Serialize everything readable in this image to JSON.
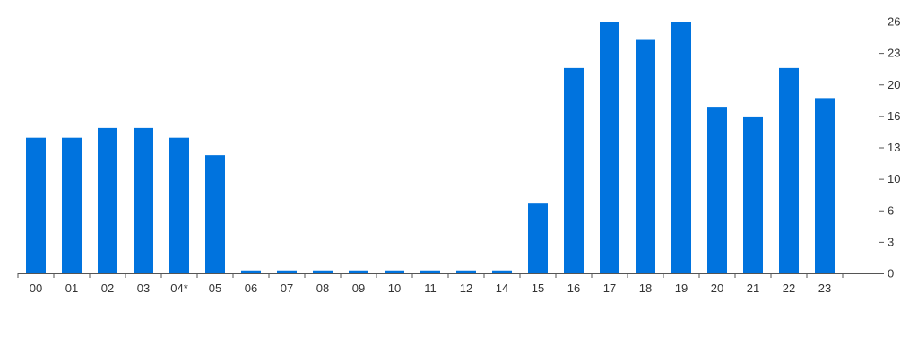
{
  "chart_data": {
    "type": "bar",
    "categories": [
      "00",
      "01",
      "02",
      "03",
      "04*",
      "05",
      "06",
      "07",
      "08",
      "09",
      "10",
      "11",
      "12",
      "14",
      "15",
      "16",
      "17",
      "18",
      "19",
      "20",
      "21",
      "22",
      "23"
    ],
    "values": [
      14,
      14,
      15,
      15,
      14,
      12.2,
      0.3,
      0.3,
      0.3,
      0.3,
      0.3,
      0.3,
      0.3,
      0.3,
      7.2,
      21.2,
      26,
      24.1,
      26,
      17.2,
      16.2,
      21.2,
      18.1
    ],
    "y_ticks": [
      "0",
      "3",
      "6",
      "10",
      "13",
      "16",
      "20",
      "23",
      "26"
    ],
    "ylim": [
      0,
      26
    ],
    "y_axis_position": "right",
    "grid": false,
    "bar_color": "#0073DE",
    "axis_color": "#555555",
    "title": "",
    "xlabel": "",
    "ylabel": ""
  }
}
